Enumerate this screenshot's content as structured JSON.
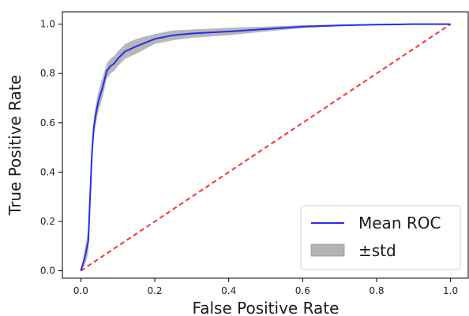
{
  "chart_data": {
    "type": "line",
    "xlabel": "False Positive Rate",
    "ylabel": "True Positive Rate",
    "xlim": [
      -0.05,
      1.05
    ],
    "ylim": [
      -0.03,
      1.05
    ],
    "x_ticks": [
      0.0,
      0.2,
      0.4,
      0.6,
      0.8,
      1.0
    ],
    "y_ticks": [
      0.0,
      0.2,
      0.4,
      0.6,
      0.8,
      1.0
    ],
    "x_tick_labels": [
      "0.0",
      "0.2",
      "0.4",
      "0.6",
      "0.8",
      "1.0"
    ],
    "y_tick_labels": [
      "0.0",
      "0.2",
      "0.4",
      "0.6",
      "0.8",
      "1.0"
    ],
    "grid": false,
    "legend_position": "lower-right",
    "series": [
      {
        "name": "Mean ROC",
        "color": "#2b2bf0",
        "x": [
          0.0,
          0.01,
          0.02,
          0.025,
          0.03,
          0.035,
          0.04,
          0.045,
          0.05,
          0.06,
          0.07,
          0.08,
          0.09,
          0.1,
          0.12,
          0.15,
          0.2,
          0.25,
          0.3,
          0.4,
          0.5,
          0.6,
          0.7,
          0.8,
          0.9,
          1.0
        ],
        "y": [
          0.0,
          0.05,
          0.12,
          0.3,
          0.48,
          0.58,
          0.63,
          0.67,
          0.7,
          0.75,
          0.81,
          0.83,
          0.84,
          0.86,
          0.89,
          0.91,
          0.94,
          0.955,
          0.962,
          0.97,
          0.98,
          0.99,
          0.995,
          0.998,
          1.0,
          1.0
        ]
      },
      {
        "name": "±std",
        "color": "#b3b3b3",
        "x": [
          0.0,
          0.01,
          0.02,
          0.025,
          0.03,
          0.035,
          0.04,
          0.045,
          0.05,
          0.06,
          0.07,
          0.08,
          0.09,
          0.1,
          0.12,
          0.15,
          0.2,
          0.25,
          0.3,
          0.4,
          0.5,
          0.6,
          0.7,
          0.8,
          0.9,
          1.0
        ],
        "upper": [
          0.0,
          0.08,
          0.17,
          0.36,
          0.53,
          0.62,
          0.67,
          0.71,
          0.74,
          0.79,
          0.84,
          0.86,
          0.87,
          0.89,
          0.92,
          0.94,
          0.96,
          0.975,
          0.978,
          0.985,
          0.99,
          0.996,
          0.998,
          1.0,
          1.0,
          1.0
        ],
        "lower": [
          0.0,
          0.02,
          0.07,
          0.24,
          0.43,
          0.54,
          0.59,
          0.63,
          0.66,
          0.71,
          0.78,
          0.8,
          0.81,
          0.83,
          0.86,
          0.88,
          0.92,
          0.935,
          0.945,
          0.955,
          0.97,
          0.984,
          0.992,
          0.996,
          1.0,
          1.0
        ]
      },
      {
        "color": "#ff3030",
        "style": "dashed",
        "x": [
          0.0,
          1.0
        ],
        "y": [
          0.0,
          1.0
        ]
      }
    ]
  }
}
